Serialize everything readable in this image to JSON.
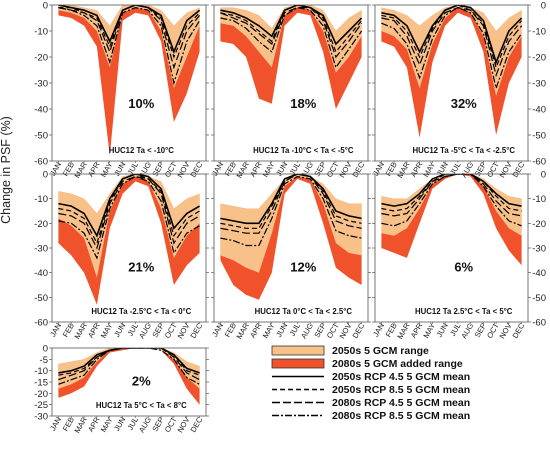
{
  "figure": {
    "ylabel": "Change in PSF (%)",
    "months": [
      "JAN",
      "FEB",
      "MAR",
      "APR",
      "MAY",
      "JUN",
      "JUL",
      "AUG",
      "SEP",
      "OCT",
      "NOV",
      "DEC"
    ],
    "yticks": [
      0,
      -10,
      -20,
      -30,
      -40,
      -50,
      -60
    ],
    "colors": {
      "range2050": "#F9C18A",
      "added2080": "#F0532C",
      "line": "#000000"
    }
  },
  "legend": {
    "items": [
      {
        "key": "range2050",
        "label": "2050s 5 GCM range",
        "style": "box-light"
      },
      {
        "key": "added2080",
        "label": "2080s 5 GCM added range",
        "style": "box-dark"
      },
      {
        "key": "l2050_45",
        "label": "2050s RCP 4.5 5 GCM mean",
        "style": "solid"
      },
      {
        "key": "l2050_85",
        "label": "2050s RCP 8.5 5 GCM mean",
        "style": "dash"
      },
      {
        "key": "l2080_45",
        "label": "2080s RCP 4.5 5 GCM mean",
        "style": "longdash"
      },
      {
        "key": "l2080_85",
        "label": "2080s RCP 8.5 5 GCM mean",
        "style": "dashdot"
      }
    ]
  },
  "chart_data": [
    {
      "type": "area",
      "title": "HUC12 Ta < -10°C",
      "percent": "10%",
      "ylim": [
        -60,
        0
      ],
      "x": [
        "JAN",
        "FEB",
        "MAR",
        "APR",
        "MAY",
        "JUN",
        "JUL",
        "AUG",
        "SEP",
        "OCT",
        "NOV",
        "DEC"
      ],
      "range2050_top": [
        0,
        0,
        -1,
        -2,
        -8,
        0,
        0,
        0,
        -2,
        -8,
        -3,
        -1
      ],
      "range2050_bottom": [
        -2,
        -3,
        -5,
        -10,
        -24,
        -3,
        -1,
        -2,
        -10,
        -32,
        -20,
        -8
      ],
      "range2080_bottom": [
        -4,
        -5,
        -8,
        -16,
        -58,
        -6,
        -3,
        -4,
        -14,
        -45,
        -34,
        -18
      ],
      "series": [
        {
          "name": "2050s RCP 4.5 5 GCM mean",
          "values": [
            0,
            -1,
            -2,
            -4,
            -14,
            -2,
            0,
            -1,
            -4,
            -18,
            -6,
            -2
          ]
        },
        {
          "name": "2050s RCP 8.5 5 GCM mean",
          "values": [
            -1,
            -1,
            -3,
            -5,
            -16,
            -2,
            0,
            -1,
            -5,
            -20,
            -8,
            -3
          ]
        },
        {
          "name": "2080s RCP 4.5 5 GCM mean",
          "values": [
            -1,
            -2,
            -3,
            -6,
            -18,
            -2,
            0,
            -1,
            -6,
            -24,
            -10,
            -4
          ]
        },
        {
          "name": "2080s RCP 8.5 5 GCM mean",
          "values": [
            -1,
            -2,
            -4,
            -8,
            -22,
            -3,
            -1,
            -2,
            -8,
            -30,
            -14,
            -6
          ]
        }
      ]
    },
    {
      "type": "area",
      "title": "HUC12 Ta -10°C < Ta < -5°C",
      "percent": "18%",
      "ylim": [
        -60,
        0
      ],
      "x": [
        "JAN",
        "FEB",
        "MAR",
        "APR",
        "MAY",
        "JUN",
        "JUL",
        "AUG",
        "SEP",
        "OCT",
        "NOV",
        "DEC"
      ],
      "range2050_top": [
        -1,
        -1,
        -2,
        -4,
        -9,
        -1,
        0,
        0,
        -2,
        -10,
        -5,
        -2
      ],
      "range2050_bottom": [
        -7,
        -8,
        -12,
        -18,
        -24,
        -4,
        -1,
        -2,
        -10,
        -26,
        -20,
        -12
      ],
      "range2080_bottom": [
        -14,
        -15,
        -20,
        -36,
        -38,
        -8,
        -3,
        -4,
        -18,
        -40,
        -30,
        -20
      ],
      "series": [
        {
          "name": "2050s RCP 4.5 5 GCM mean",
          "values": [
            -2,
            -3,
            -5,
            -8,
            -12,
            -2,
            0,
            -1,
            -4,
            -15,
            -10,
            -5
          ]
        },
        {
          "name": "2050s RCP 8.5 5 GCM mean",
          "values": [
            -3,
            -4,
            -6,
            -10,
            -14,
            -2,
            0,
            -1,
            -5,
            -18,
            -12,
            -6
          ]
        },
        {
          "name": "2080s RCP 4.5 5 GCM mean",
          "values": [
            -3,
            -5,
            -7,
            -11,
            -15,
            -3,
            -1,
            -1,
            -6,
            -20,
            -14,
            -7
          ]
        },
        {
          "name": "2080s RCP 8.5 5 GCM mean",
          "values": [
            -5,
            -6,
            -9,
            -14,
            -18,
            -4,
            -1,
            -2,
            -8,
            -24,
            -17,
            -10
          ]
        }
      ]
    },
    {
      "type": "area",
      "title": "HUC12 Ta -5°C < Ta < -2.5°C",
      "percent": "32%",
      "ylim": [
        -60,
        0
      ],
      "x": [
        "JAN",
        "FEB",
        "MAR",
        "APR",
        "MAY",
        "JUN",
        "JUL",
        "AUG",
        "SEP",
        "OCT",
        "NOV",
        "DEC"
      ],
      "range2050_top": [
        -1,
        -2,
        -4,
        -8,
        -4,
        -1,
        0,
        -1,
        -3,
        -10,
        -5,
        -2
      ],
      "range2050_bottom": [
        -10,
        -12,
        -17,
        -32,
        -15,
        -5,
        -1,
        -3,
        -12,
        -35,
        -20,
        -12
      ],
      "range2080_bottom": [
        -14,
        -16,
        -24,
        -51,
        -22,
        -8,
        -3,
        -5,
        -18,
        -50,
        -30,
        -20
      ],
      "series": [
        {
          "name": "2050s RCP 4.5 5 GCM mean",
          "values": [
            -3,
            -4,
            -8,
            -18,
            -8,
            -2,
            0,
            -1,
            -6,
            -22,
            -10,
            -5
          ]
        },
        {
          "name": "2050s RCP 8.5 5 GCM mean",
          "values": [
            -4,
            -5,
            -10,
            -20,
            -9,
            -2,
            0,
            -2,
            -7,
            -24,
            -12,
            -6
          ]
        },
        {
          "name": "2080s RCP 4.5 5 GCM mean",
          "values": [
            -5,
            -6,
            -12,
            -23,
            -10,
            -3,
            -1,
            -2,
            -8,
            -27,
            -14,
            -8
          ]
        },
        {
          "name": "2080s RCP 8.5 5 GCM mean",
          "values": [
            -7,
            -9,
            -15,
            -28,
            -13,
            -4,
            -1,
            -3,
            -11,
            -32,
            -18,
            -11
          ]
        }
      ]
    },
    {
      "type": "area",
      "title": "HUC12 Ta -2.5°C < Ta < 0°C",
      "percent": "21%",
      "ylim": [
        -60,
        0
      ],
      "x": [
        "JAN",
        "FEB",
        "MAR",
        "APR",
        "MAY",
        "JUN",
        "JUL",
        "AUG",
        "SEP",
        "OCT",
        "NOV",
        "DEC"
      ],
      "range2050_top": [
        -7,
        -8,
        -10,
        -16,
        -8,
        -1,
        0,
        -1,
        -3,
        -14,
        -10,
        -8
      ],
      "range2050_bottom": [
        -18,
        -21,
        -26,
        -42,
        -15,
        -4,
        -1,
        -3,
        -14,
        -34,
        -25,
        -20
      ],
      "range2080_bottom": [
        -28,
        -33,
        -40,
        -53,
        -22,
        -8,
        -3,
        -5,
        -20,
        -45,
        -37,
        -32
      ],
      "series": [
        {
          "name": "2050s RCP 4.5 5 GCM mean",
          "values": [
            -12,
            -13,
            -16,
            -25,
            -10,
            -2,
            0,
            -1,
            -6,
            -22,
            -16,
            -13
          ]
        },
        {
          "name": "2050s RCP 8.5 5 GCM mean",
          "values": [
            -14,
            -15,
            -18,
            -28,
            -11,
            -2,
            0,
            -2,
            -7,
            -25,
            -18,
            -15
          ]
        },
        {
          "name": "2080s RCP 4.5 5 GCM mean",
          "values": [
            -16,
            -17,
            -20,
            -30,
            -12,
            -3,
            -1,
            -2,
            -8,
            -28,
            -20,
            -17
          ]
        },
        {
          "name": "2080s RCP 8.5 5 GCM mean",
          "values": [
            -19,
            -20,
            -24,
            -34,
            -14,
            -4,
            -1,
            -3,
            -11,
            -32,
            -24,
            -21
          ]
        }
      ]
    },
    {
      "type": "area",
      "title": "HUC12 Ta 0°C < Ta < 2.5°C",
      "percent": "12%",
      "ylim": [
        -60,
        0
      ],
      "x": [
        "JAN",
        "FEB",
        "MAR",
        "APR",
        "MAY",
        "JUN",
        "JUL",
        "AUG",
        "SEP",
        "OCT",
        "NOV",
        "DEC"
      ],
      "range2050_top": [
        -12,
        -13,
        -14,
        -14,
        -8,
        -2,
        0,
        -1,
        -4,
        -10,
        -12,
        -12
      ],
      "range2050_bottom": [
        -33,
        -35,
        -38,
        -40,
        -24,
        -5,
        -1,
        -2,
        -12,
        -28,
        -32,
        -33
      ],
      "range2080_bottom": [
        -35,
        -45,
        -49,
        -51,
        -40,
        -8,
        -2,
        -4,
        -20,
        -38,
        -42,
        -45
      ],
      "series": [
        {
          "name": "2050s RCP 4.5 5 GCM mean",
          "values": [
            -18,
            -19,
            -20,
            -20,
            -12,
            -2,
            0,
            -1,
            -6,
            -15,
            -17,
            -18
          ]
        },
        {
          "name": "2050s RCP 8.5 5 GCM mean",
          "values": [
            -20,
            -21,
            -22,
            -22,
            -13,
            -3,
            0,
            -1,
            -7,
            -17,
            -19,
            -20
          ]
        },
        {
          "name": "2080s RCP 4.5 5 GCM mean",
          "values": [
            -22,
            -23,
            -24,
            -24,
            -15,
            -3,
            0,
            -1,
            -8,
            -19,
            -21,
            -22
          ]
        },
        {
          "name": "2080s RCP 8.5 5 GCM mean",
          "values": [
            -26,
            -27,
            -29,
            -29,
            -18,
            -4,
            -1,
            -2,
            -10,
            -23,
            -25,
            -26
          ]
        }
      ]
    },
    {
      "type": "area",
      "title": "HUC12 Ta 2.5°C < Ta < 5°C",
      "percent": "6%",
      "ylim": [
        -60,
        0
      ],
      "x": [
        "JAN",
        "FEB",
        "MAR",
        "APR",
        "MAY",
        "JUN",
        "JUL",
        "AUG",
        "SEP",
        "OCT",
        "NOV",
        "DEC"
      ],
      "range2050_top": [
        -9,
        -10,
        -10,
        -6,
        -2,
        0,
        0,
        0,
        -2,
        -6,
        -9,
        -10
      ],
      "range2050_bottom": [
        -24,
        -25,
        -22,
        -14,
        -4,
        -1,
        0,
        0,
        -5,
        -15,
        -22,
        -25
      ],
      "range2080_bottom": [
        -30,
        -32,
        -34,
        -20,
        -6,
        -2,
        0,
        -1,
        -8,
        -22,
        -31,
        -37
      ],
      "series": [
        {
          "name": "2050s RCP 4.5 5 GCM mean",
          "values": [
            -12,
            -13,
            -12,
            -8,
            -2,
            0,
            0,
            0,
            -3,
            -8,
            -12,
            -13
          ]
        },
        {
          "name": "2050s RCP 8.5 5 GCM mean",
          "values": [
            -14,
            -15,
            -14,
            -9,
            -3,
            0,
            0,
            0,
            -3,
            -9,
            -14,
            -15
          ]
        },
        {
          "name": "2080s RCP 4.5 5 GCM mean",
          "values": [
            -16,
            -17,
            -16,
            -10,
            -3,
            -1,
            0,
            0,
            -4,
            -11,
            -16,
            -17
          ]
        },
        {
          "name": "2080s RCP 8.5 5 GCM mean",
          "values": [
            -20,
            -21,
            -19,
            -12,
            -4,
            -1,
            0,
            0,
            -5,
            -13,
            -19,
            -21
          ]
        }
      ]
    },
    {
      "type": "area",
      "title": "HUC12 Ta 5°C < Ta < 8°C",
      "percent": "2%",
      "ylim": [
        -30,
        0
      ],
      "yticks": [
        0,
        -5,
        -10,
        -15,
        -20,
        -25,
        -30
      ],
      "x": [
        "JAN",
        "FEB",
        "MAR",
        "APR",
        "MAY",
        "JUN",
        "JUL",
        "AUG",
        "SEP",
        "OCT",
        "NOV",
        "DEC"
      ],
      "range2050_top": [
        -7,
        -6,
        -5,
        -2,
        0,
        0,
        0,
        0,
        0,
        -2,
        -6,
        -8
      ],
      "range2050_bottom": [
        -18,
        -16,
        -13,
        -6,
        -1,
        0,
        0,
        0,
        -1,
        -5,
        -13,
        -18
      ],
      "range2080_bottom": [
        -22,
        -20,
        -17,
        -8,
        -2,
        -1,
        0,
        0,
        -1,
        -7,
        -18,
        -25
      ],
      "series": [
        {
          "name": "2050s RCP 4.5 5 GCM mean",
          "values": [
            -11,
            -10,
            -8,
            -3,
            -1,
            0,
            0,
            0,
            0,
            -3,
            -9,
            -11
          ]
        },
        {
          "name": "2050s RCP 8.5 5 GCM mean",
          "values": [
            -12,
            -11,
            -9,
            -4,
            -1,
            0,
            0,
            0,
            0,
            -3,
            -10,
            -12
          ]
        },
        {
          "name": "2080s RCP 4.5 5 GCM mean",
          "values": [
            -14,
            -12,
            -10,
            -4,
            -1,
            0,
            0,
            0,
            0,
            -4,
            -11,
            -14
          ]
        },
        {
          "name": "2080s RCP 8.5 5 GCM mean",
          "values": [
            -16,
            -14,
            -12,
            -5,
            -1,
            0,
            0,
            0,
            -1,
            -5,
            -13,
            -16
          ]
        }
      ]
    }
  ]
}
